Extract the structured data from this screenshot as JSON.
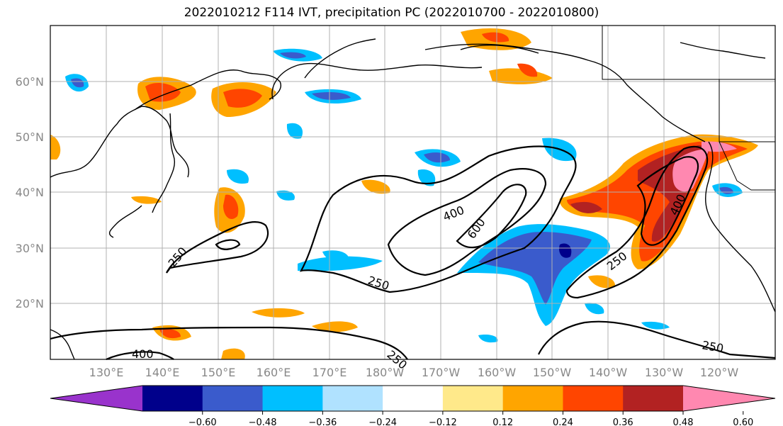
{
  "title": "2022010212 F114 IVT, precipitation PC (2022010700 - 2022010800)",
  "lat_labels": [
    "60°N",
    "50°N",
    "40°N",
    "30°N",
    "20°N"
  ],
  "lon_labels": [
    "130°E",
    "140°E",
    "150°E",
    "160°E",
    "170°E",
    "180°W",
    "170°W",
    "160°W",
    "150°W",
    "140°W",
    "130°W",
    "120°W"
  ],
  "contour_labels": [
    "400",
    "600",
    "250",
    "250",
    "250",
    "250",
    "400",
    "400",
    "250"
  ],
  "colorbar": {
    "ticks": [
      "−0.60",
      "−0.48",
      "−0.36",
      "−0.24",
      "−0.12",
      "0.12",
      "0.24",
      "0.36",
      "0.48",
      "0.60"
    ],
    "colors": [
      "#9933cc",
      "#00008b",
      "#3a5bcc",
      "#00bfff",
      "#b0e2ff",
      "#ffffff",
      "#ffe98a",
      "#ffa500",
      "#ff4500",
      "#b22222",
      "#ff88b0"
    ]
  },
  "colors": {
    "coast": "#000000",
    "gridline": "#b0b0b0",
    "ivt_contour": "#000000"
  }
}
